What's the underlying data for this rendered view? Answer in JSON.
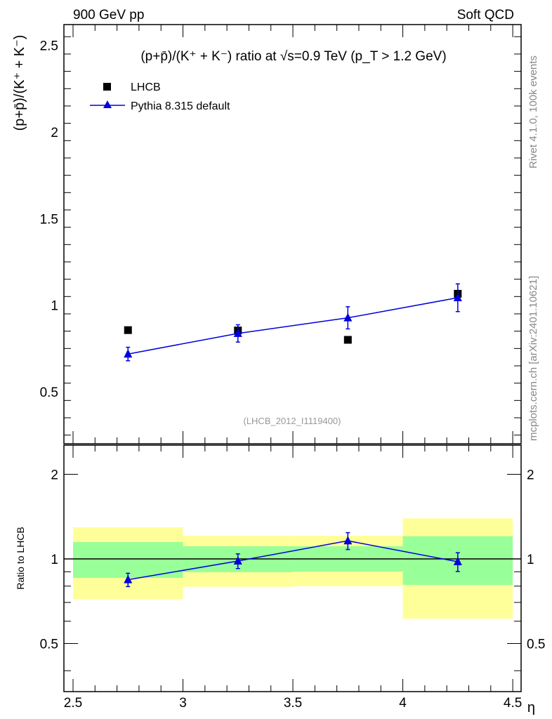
{
  "header": {
    "left": "900 GeV pp",
    "right": "Soft QCD"
  },
  "side_labels": {
    "rivet": "Rivet 4.1.0,  100k events",
    "mcplots": "mcplots.cern.ch [arXiv:2401.10621]"
  },
  "chart_data": [
    {
      "type": "scatter",
      "title": "(p+p̄)/(K⁺ + K⁻) ratio at √s=0.9 TeV (p_T > 1.2 GeV)",
      "ylabel": "(p+p̄)/(K⁺ + K⁻)",
      "xlabel": "η",
      "xlim": [
        2.4585,
        4.538
      ],
      "ylim": [
        0.2,
        2.62
      ],
      "yticks": [
        0.5,
        1,
        1.5,
        2,
        2.5
      ],
      "ytick_labels": [
        "0.5",
        "1",
        "1.5",
        "2",
        "2.5"
      ],
      "annotation": "(LHCB_2012_I1119400)",
      "legend_position": "top-left",
      "series": [
        {
          "name": "LHCB",
          "marker": "square",
          "color": "#000000",
          "x": [
            2.75,
            3.25,
            3.75,
            4.25
          ],
          "y": [
            0.856,
            0.854,
            0.8,
            1.066
          ]
        },
        {
          "name": "Pythia 8.315 default",
          "marker": "triangle",
          "color": "#0000dd",
          "x": [
            2.75,
            3.25,
            3.75,
            4.25
          ],
          "y": [
            0.718,
            0.837,
            0.927,
            1.043
          ],
          "yerr": [
            0.039,
            0.05,
            0.064,
            0.08
          ]
        }
      ]
    },
    {
      "type": "line",
      "ylabel": "Ratio to LHCB",
      "xlabel": "η",
      "yscale": "log",
      "xlim": [
        2.4585,
        4.538
      ],
      "ylim": [
        0.337,
        2.54
      ],
      "xticks": [
        2.5,
        3,
        3.5,
        4,
        4.5
      ],
      "xtick_labels": [
        "2.5",
        "3",
        "3.5",
        "4",
        "4.5"
      ],
      "yticks": [
        0.5,
        1,
        2
      ],
      "ytick_labels": [
        "0.5",
        "1",
        "2"
      ],
      "bands": [
        {
          "x": [
            2.5,
            3.0
          ],
          "yellow": [
            0.718,
            1.296
          ],
          "green": [
            0.856,
            1.148
          ]
        },
        {
          "x": [
            3.0,
            3.5
          ],
          "yellow": [
            0.796,
            1.209
          ],
          "green": [
            0.897,
            1.109
          ]
        },
        {
          "x": [
            3.5,
            4.0
          ],
          "yellow": [
            0.8,
            1.209
          ],
          "green": [
            0.901,
            1.109
          ]
        },
        {
          "x": [
            4.0,
            4.5
          ],
          "yellow": [
            0.613,
            1.394
          ],
          "green": [
            0.808,
            1.204
          ]
        }
      ],
      "series": [
        {
          "name": "Pythia 8.315 default",
          "color": "#0000dd",
          "x": [
            2.75,
            3.25,
            3.75,
            4.25
          ],
          "y": [
            0.843,
            0.983,
            1.16,
            0.977
          ],
          "yerr": [
            0.046,
            0.059,
            0.08,
            0.075
          ]
        }
      ]
    }
  ]
}
